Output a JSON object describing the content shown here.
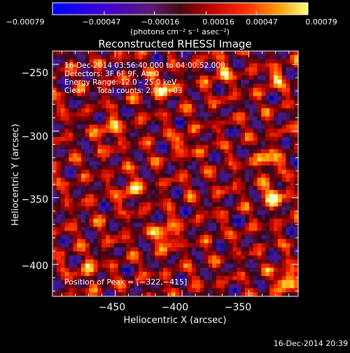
{
  "colorbar": {
    "tick_labels": [
      "−0.00079",
      "−0.00047",
      "−0.00016",
      "0.00016",
      "0.00047",
      "0.00079"
    ],
    "tick_values": [
      -0.00079,
      -0.00047,
      -0.00016,
      0.00016,
      0.00047,
      0.00079
    ],
    "range": [
      -0.00079,
      0.00079
    ],
    "units_label": "(photons cm⁻² s⁻¹ asec⁻²)"
  },
  "chart_data": {
    "type": "heatmap",
    "title": "Reconstructed RHESSI Image",
    "xlabel": "Heliocentric X (arcsec)",
    "ylabel": "Heliocentric Y (arcsec)",
    "xlim": [
      -497,
      -313
    ],
    "ylim": [
      -424,
      -240
    ],
    "x_ticks": [
      -450,
      -400,
      -350
    ],
    "x_tick_labels": [
      "−450",
      "−400",
      "−350"
    ],
    "y_ticks": [
      -250,
      -300,
      -350,
      -400
    ],
    "y_tick_labels": [
      "−250",
      "−300",
      "−350",
      "−400"
    ],
    "colormap": "rhessi-hot (blue → purple → red → orange → yellow → white)",
    "annotations": [
      "16-Dec-2014 03:56:40.000 to 04:00:52.000",
      "Detectors: 3F 6F 9F, Att 0",
      "Energy Range: 12.0 - 25.0 keV",
      "Clean     Total counts: 2.04E+03"
    ],
    "peak_label": "Position of Peak = [−322,−415]",
    "peak_position": [
      -322,
      -415
    ],
    "bright_sources": [
      {
        "x": -412,
        "y": -378,
        "level": 1.0
      },
      {
        "x": -331,
        "y": -348,
        "level": 0.92
      },
      {
        "x": -322,
        "y": -411,
        "level": 1.0
      },
      {
        "x": -336,
        "y": -322,
        "level": 0.8
      },
      {
        "x": -454,
        "y": -300,
        "level": 0.72
      },
      {
        "x": -414,
        "y": -268,
        "level": 0.72
      },
      {
        "x": -439,
        "y": -344,
        "level": 0.65
      },
      {
        "x": -370,
        "y": -257,
        "level": 0.6
      },
      {
        "x": -470,
        "y": -404,
        "level": 0.55
      },
      {
        "x": -330,
        "y": -260,
        "level": 0.55
      },
      {
        "x": -398,
        "y": -310,
        "level": 0.5
      }
    ]
  },
  "footer": {
    "timestamp": "16-Dec-2014 20:39"
  }
}
